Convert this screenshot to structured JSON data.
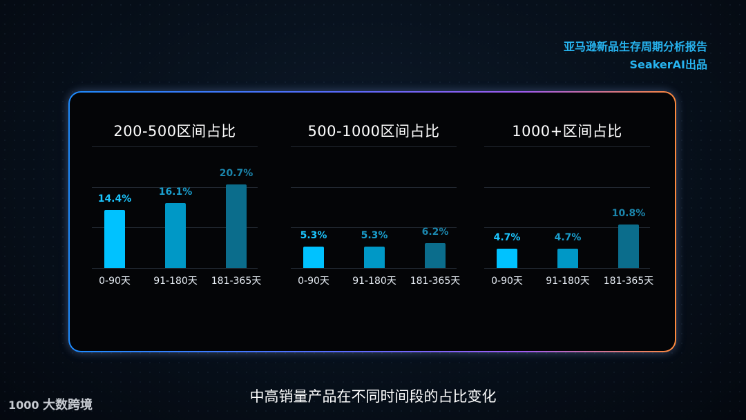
{
  "header": {
    "report_title": "亚马逊新品生存周期分析报告",
    "report_by": "SeakerAI出品"
  },
  "footer": {
    "title": "中高销量产品在不同时间段的占比变化",
    "logo_text": "大数跨境",
    "logo_mark": "1000"
  },
  "colors": {
    "bar_1": "#00c2ff",
    "bar_2": "#0098c6",
    "bar_3": "#0b6d8c",
    "label_1": "#1cc6ff",
    "label_2": "#1a9fce",
    "label_3": "#1b86ad"
  },
  "chart_data": [
    {
      "type": "bar",
      "title": "200-500区间占比",
      "categories": [
        "0-90天",
        "91-180天",
        "181-365天"
      ],
      "values": [
        14.4,
        16.1,
        20.7
      ],
      "value_labels": [
        "14.4%",
        "16.1%",
        "20.7%"
      ],
      "ylim": [
        0,
        30
      ],
      "grid": true
    },
    {
      "type": "bar",
      "title": "500-1000区间占比",
      "categories": [
        "0-90天",
        "91-180天",
        "181-365天"
      ],
      "values": [
        5.3,
        5.3,
        6.2
      ],
      "value_labels": [
        "5.3%",
        "5.3%",
        "6.2%"
      ],
      "ylim": [
        0,
        30
      ],
      "grid": true
    },
    {
      "type": "bar",
      "title": "1000+区间占比",
      "categories": [
        "0-90天",
        "91-180天",
        "181-365天"
      ],
      "values": [
        4.7,
        4.7,
        10.8
      ],
      "value_labels": [
        "4.7%",
        "4.7%",
        "10.8%"
      ],
      "ylim": [
        0,
        30
      ],
      "grid": true
    }
  ]
}
